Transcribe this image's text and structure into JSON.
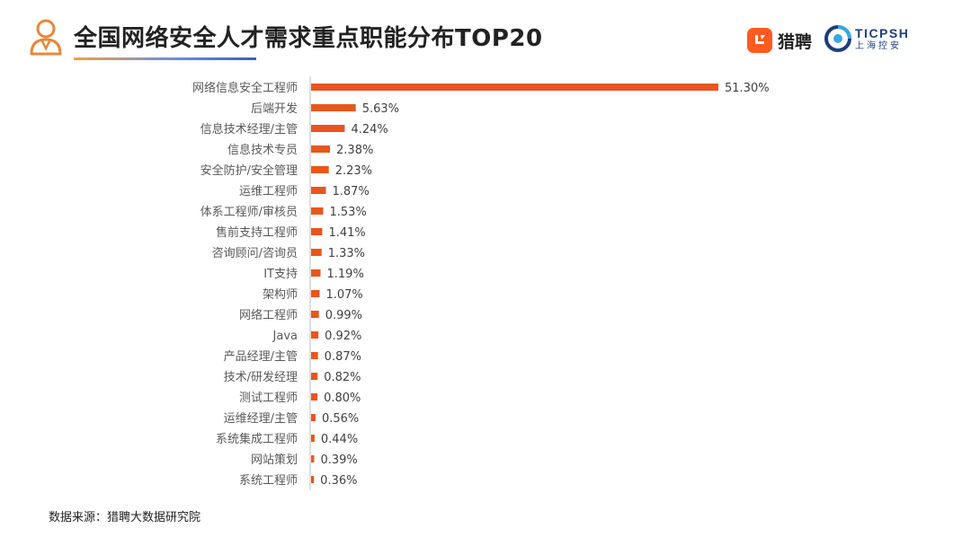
{
  "header": {
    "title": "全国网络安全人才需求重点职能分布TOP20"
  },
  "brands": {
    "liepin_label": "猎聘",
    "ticpsh_name": "TICPSH",
    "ticpsh_sub": "上海控安"
  },
  "footer": {
    "source": "数据来源：猎聘大数据研究院"
  },
  "colors": {
    "bar": "#e8561d",
    "axis": "#bfbfbf"
  },
  "chart_data": {
    "type": "bar",
    "orientation": "horizontal",
    "title": "全国网络安全人才需求重点职能分布TOP20",
    "xlabel": "",
    "ylabel": "",
    "xlim": [
      0,
      51.3
    ],
    "value_suffix": "%",
    "categories": [
      "网络信息安全工程师",
      "后端开发",
      "信息技术经理/主管",
      "信息技术专员",
      "安全防护/安全管理",
      "运维工程师",
      "体系工程师/审核员",
      "售前支持工程师",
      "咨询顾问/咨询员",
      "IT支持",
      "架构师",
      "网络工程师",
      "Java",
      "产品经理/主管",
      "技术/研发经理",
      "测试工程师",
      "运维经理/主管",
      "系统集成工程师",
      "网站策划",
      "系统工程师"
    ],
    "values": [
      51.3,
      5.63,
      4.24,
      2.38,
      2.23,
      1.87,
      1.53,
      1.41,
      1.33,
      1.19,
      1.07,
      0.99,
      0.92,
      0.87,
      0.82,
      0.8,
      0.56,
      0.44,
      0.39,
      0.36
    ],
    "value_labels": [
      "51.30%",
      "5.63%",
      "4.24%",
      "2.38%",
      "2.23%",
      "1.87%",
      "1.53%",
      "1.41%",
      "1.33%",
      "1.19%",
      "1.07%",
      "0.99%",
      "0.92%",
      "0.87%",
      "0.82%",
      "0.80%",
      "0.56%",
      "0.44%",
      "0.39%",
      "0.36%"
    ]
  }
}
